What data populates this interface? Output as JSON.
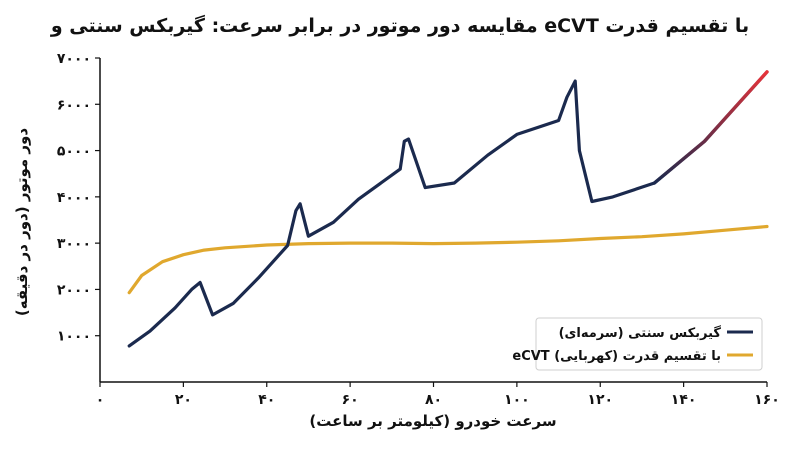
{
  "chart_data": {
    "type": "line",
    "title": "مقایسه دور موتور در برابر سرعت: گیربکس سنتی و eCVT با تقسیم قدرت",
    "xlabel": "سرعت خودرو (کیلومتر بر ساعت)",
    "ylabel": "دور موتور (دور در دقیقه)",
    "xlim": [
      0,
      160
    ],
    "ylim": [
      0,
      7000
    ],
    "xticks": [
      0,
      20,
      40,
      60,
      80,
      100,
      120,
      140,
      160
    ],
    "xtick_labels": [
      "۰",
      "۲۰",
      "۴۰",
      "۶۰",
      "۸۰",
      "۱۰۰",
      "۱۲۰",
      "۱۴۰",
      "۱۶۰"
    ],
    "yticks": [
      1000,
      2000,
      3000,
      4000,
      5000,
      6000,
      7000
    ],
    "ytick_labels": [
      "۱۰۰۰",
      "۲۰۰۰",
      "۳۰۰۰",
      "۴۰۰۰",
      "۵۰۰۰",
      "۶۰۰۰",
      "۷۰۰۰"
    ],
    "grid": false,
    "legend_position": "bottom-right",
    "series": [
      {
        "name": "گیربکس سنتی (سرمه‌ای)",
        "color": "#1b2a4e",
        "highlight_color": "#e8333a",
        "x": [
          7,
          12,
          18,
          22,
          24,
          27,
          32,
          38,
          45,
          47,
          48,
          50,
          56,
          62,
          72,
          73,
          74,
          78,
          85,
          93,
          100,
          110,
          112,
          114,
          115,
          118,
          123,
          133,
          145,
          160
        ],
        "y": [
          780,
          1100,
          1600,
          2000,
          2150,
          1450,
          1700,
          2250,
          2950,
          3700,
          3850,
          3150,
          3450,
          3950,
          4600,
          5200,
          5250,
          4200,
          4300,
          4900,
          5350,
          5650,
          6150,
          6500,
          5000,
          3900,
          4000,
          4300,
          5200,
          6700
        ]
      },
      {
        "name": "eCVT با تقسیم قدرت (کهربایی)",
        "color": "#e0a82e",
        "x": [
          7,
          10,
          15,
          20,
          25,
          30,
          40,
          50,
          60,
          70,
          80,
          90,
          100,
          110,
          120,
          130,
          140,
          150,
          160
        ],
        "y": [
          1930,
          2300,
          2600,
          2750,
          2850,
          2900,
          2960,
          2990,
          3000,
          3000,
          2990,
          3000,
          3020,
          3050,
          3100,
          3140,
          3200,
          3280,
          3360
        ]
      }
    ]
  }
}
